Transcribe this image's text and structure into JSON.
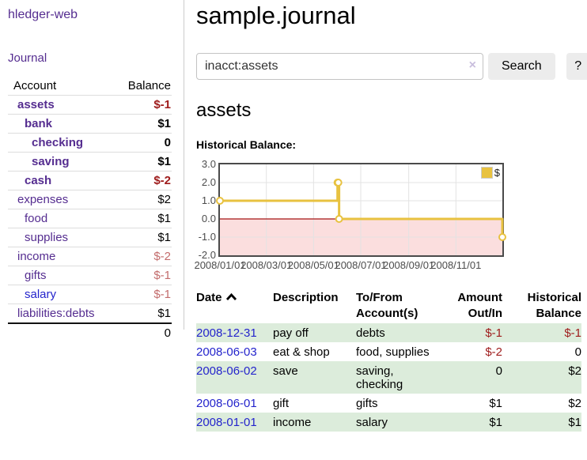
{
  "app": {
    "title": "hledger-web"
  },
  "colors": {
    "link_purple": "#552d90",
    "link_blue": "#2424cc",
    "negative_strong": "#9e1b1b",
    "negative_soft": "#c36c6c",
    "row_green": "#dcecdb"
  },
  "sidebar": {
    "journal_link": "Journal",
    "table": {
      "headers": {
        "account": "Account",
        "balance": "Balance"
      },
      "accounts": [
        {
          "name": "assets",
          "depth": 1,
          "bold": true,
          "balance": "$-1",
          "neg": "strong"
        },
        {
          "name": "bank",
          "depth": 2,
          "bold": true,
          "balance": "$1"
        },
        {
          "name": "checking",
          "depth": 3,
          "bold": true,
          "balance": "0"
        },
        {
          "name": "saving",
          "depth": 3,
          "bold": true,
          "balance": "$1"
        },
        {
          "name": "cash",
          "depth": 2,
          "bold": true,
          "balance": "$-2",
          "neg": "strong"
        },
        {
          "name": "expenses",
          "depth": 1,
          "bold": false,
          "balance": "$2"
        },
        {
          "name": "food",
          "depth": 2,
          "bold": false,
          "balance": "$1"
        },
        {
          "name": "supplies",
          "depth": 2,
          "bold": false,
          "balance": "$1"
        },
        {
          "name": "income",
          "depth": 1,
          "bold": false,
          "balance": "$-2",
          "neg": "soft"
        },
        {
          "name": "gifts",
          "depth": 2,
          "bold": false,
          "balance": "$-1",
          "neg": "soft"
        },
        {
          "name": "salary",
          "depth": 2,
          "bold": false,
          "balance": "$-1",
          "neg": "soft",
          "unvisited": true
        },
        {
          "name": "liabilities:debts",
          "depth": 1,
          "bold": false,
          "balance": "$1"
        }
      ],
      "total": "0"
    }
  },
  "header": {
    "title": "sample.journal"
  },
  "search": {
    "value": "inacct:assets",
    "clear_icon": "×",
    "button": "Search",
    "help_button": "?"
  },
  "account_page": {
    "title": "assets",
    "chart_label": "Historical Balance:"
  },
  "chart_data": {
    "type": "line",
    "step": true,
    "title": "Historical Balance",
    "series": [
      {
        "name": "$",
        "color": "#e8c240",
        "points": [
          {
            "date": "2008-01-01",
            "day": 0,
            "value": 1
          },
          {
            "date": "2008-06-01",
            "day": 152,
            "value": 2
          },
          {
            "date": "2008-06-02",
            "day": 153,
            "value": 2
          },
          {
            "date": "2008-06-03",
            "day": 154,
            "value": 0
          },
          {
            "date": "2008-12-31",
            "day": 365,
            "value": -1
          }
        ]
      }
    ],
    "x_ticks": [
      {
        "label": "2008/01/01",
        "day": 0
      },
      {
        "label": "2008/03/01",
        "day": 60
      },
      {
        "label": "2008/05/01",
        "day": 121
      },
      {
        "label": "2008/07/01",
        "day": 182
      },
      {
        "label": "2008/09/01",
        "day": 244
      },
      {
        "label": "2008/11/01",
        "day": 305
      }
    ],
    "y_ticks": [
      {
        "label": "3.0",
        "value": 3
      },
      {
        "label": "2.0",
        "value": 2
      },
      {
        "label": "1.0",
        "value": 1
      },
      {
        "label": "0.0",
        "value": 0
      },
      {
        "label": "-1.0",
        "value": -1
      },
      {
        "label": "-2.0",
        "value": -2
      }
    ],
    "ylim": [
      -2,
      3
    ],
    "xlim_days": [
      0,
      365
    ],
    "grid": true,
    "grid_color": "#e3e3e3",
    "negative_region_color": "#fbdede",
    "zero_line_color": "#a51515",
    "legend": {
      "label": "$",
      "position": "top-right"
    }
  },
  "register": {
    "headers": {
      "date": "Date",
      "description": "Description",
      "accounts": "To/From Account(s)",
      "amount": "Amount Out/In",
      "balance": "Historical Balance"
    },
    "rows": [
      {
        "date": "2008-12-31",
        "description": "pay off",
        "accounts": "debts",
        "amount": "$-1",
        "amount_neg": true,
        "balance": "$-1",
        "balance_neg": true
      },
      {
        "date": "2008-06-03",
        "description": "eat & shop",
        "accounts": "food, supplies",
        "amount": "$-2",
        "amount_neg": true,
        "balance": "0",
        "balance_neg": false
      },
      {
        "date": "2008-06-02",
        "description": "save",
        "accounts": "saving, checking",
        "amount": "0",
        "amount_neg": false,
        "balance": "$2",
        "balance_neg": false
      },
      {
        "date": "2008-06-01",
        "description": "gift",
        "accounts": "gifts",
        "amount": "$1",
        "amount_neg": false,
        "balance": "$2",
        "balance_neg": false
      },
      {
        "date": "2008-01-01",
        "description": "income",
        "accounts": "salary",
        "amount": "$1",
        "amount_neg": false,
        "balance": "$1",
        "balance_neg": false
      }
    ]
  }
}
